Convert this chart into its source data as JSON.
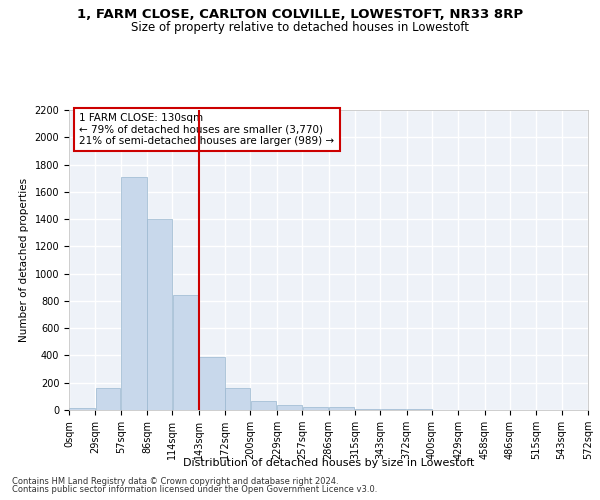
{
  "title1": "1, FARM CLOSE, CARLTON COLVILLE, LOWESTOFT, NR33 8RP",
  "title2": "Size of property relative to detached houses in Lowestoft",
  "xlabel": "Distribution of detached houses by size in Lowestoft",
  "ylabel": "Number of detached properties",
  "bar_color": "#c8d8eb",
  "bar_edge_color": "#9ab8d0",
  "vline_color": "#cc0000",
  "annotation_text": "1 FARM CLOSE: 130sqm\n← 79% of detached houses are smaller (3,770)\n21% of semi-detached houses are larger (989) →",
  "bin_edges": [
    0,
    29,
    57,
    86,
    114,
    143,
    172,
    200,
    229,
    257,
    286,
    315,
    343,
    372,
    400,
    429,
    458,
    486,
    515,
    543,
    572
  ],
  "bin_counts": [
    15,
    160,
    1710,
    1400,
    840,
    390,
    165,
    65,
    35,
    25,
    25,
    5,
    5,
    5,
    0,
    0,
    0,
    0,
    0,
    0
  ],
  "ylim": [
    0,
    2200
  ],
  "yticks": [
    0,
    200,
    400,
    600,
    800,
    1000,
    1200,
    1400,
    1600,
    1800,
    2000,
    2200
  ],
  "footer1": "Contains HM Land Registry data © Crown copyright and database right 2024.",
  "footer2": "Contains public sector information licensed under the Open Government Licence v3.0.",
  "bg_color": "#eef2f8",
  "grid_color": "#ffffff",
  "fig_bg": "#ffffff",
  "title1_fontsize": 9.5,
  "title2_fontsize": 8.5,
  "xlabel_fontsize": 8,
  "ylabel_fontsize": 7.5,
  "tick_fontsize": 7,
  "annot_fontsize": 7.5,
  "footer_fontsize": 6
}
